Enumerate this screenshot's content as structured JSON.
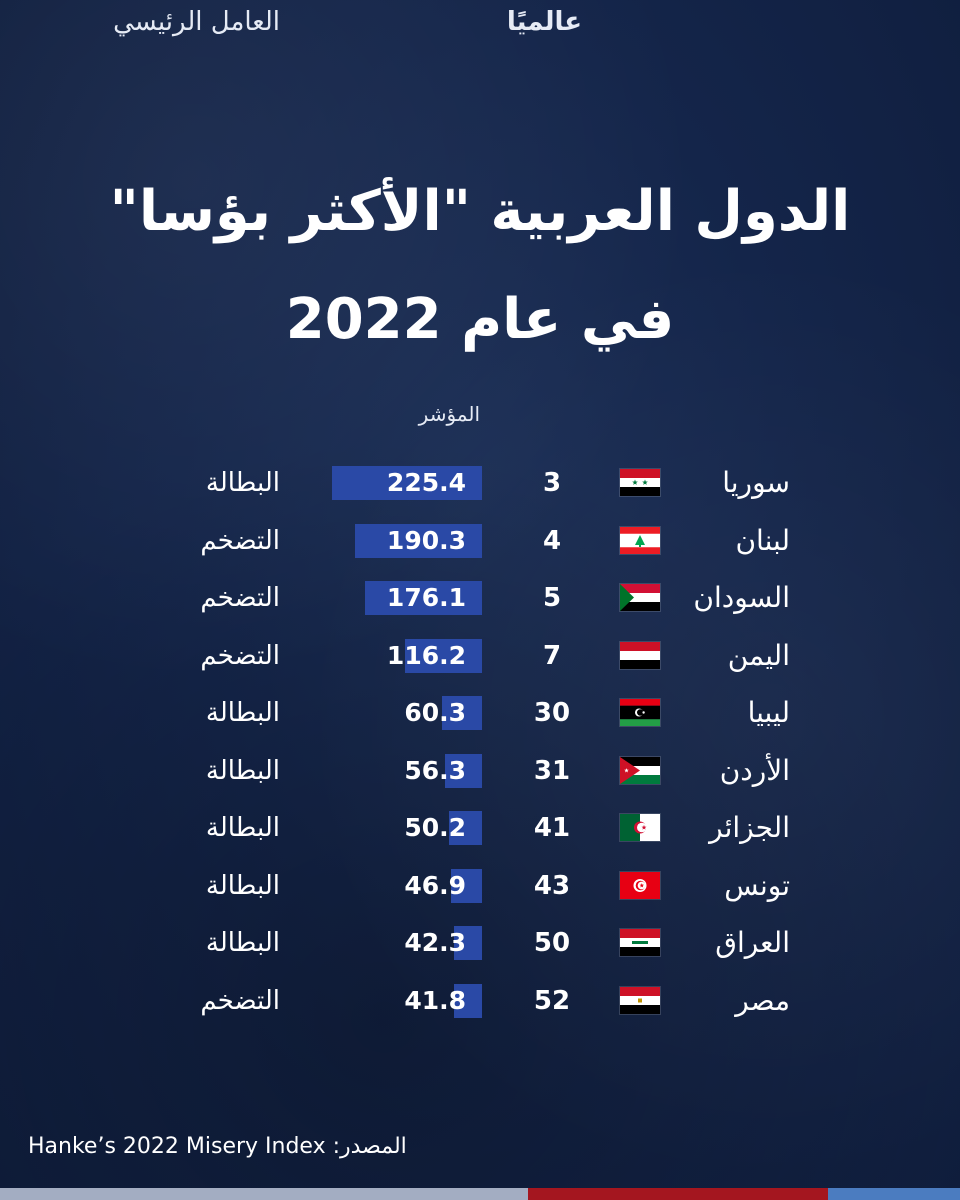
{
  "title": {
    "line1": "الدول العربية \"الأكثر بؤسا\"",
    "line2": "في عام 2022"
  },
  "headers": {
    "rank": "عالميًا",
    "index": "المؤشر",
    "factor": "العامل الرئيسي"
  },
  "source": "المصدر: Hanke’s 2022 Misery Index",
  "colors": {
    "background": "#14254a",
    "bar": "#2a49a6",
    "stripe_gray": "#a3adc2",
    "stripe_red": "#a4161f",
    "stripe_blue": "#4b7cc0"
  },
  "chart_data": {
    "type": "bar",
    "title": "الدول العربية \"الأكثر بؤسا\" في عام 2022",
    "categories": [
      "سوريا",
      "لبنان",
      "السودان",
      "اليمن",
      "ليبيا",
      "الأردن",
      "الجزائر",
      "تونس",
      "العراق",
      "مصر"
    ],
    "values": [
      225.4,
      190.3,
      176.1,
      116.2,
      60.3,
      56.3,
      50.2,
      46.9,
      42.3,
      41.8
    ],
    "display_values": [
      "225.4",
      "190.3",
      "176.1",
      "116.2",
      "60.3",
      "56.3",
      "50.2",
      "46.9",
      "42.3",
      "41.8"
    ],
    "ranks": [
      "3",
      "4",
      "5",
      "7",
      "30",
      "31",
      "41",
      "43",
      "50",
      "52"
    ],
    "factors": [
      "البطالة",
      "التضخم",
      "التضخم",
      "التضخم",
      "البطالة",
      "البطالة",
      "البطالة",
      "البطالة",
      "البطالة",
      "التضخم"
    ],
    "flags": [
      "syria-flag-icon",
      "lebanon-flag-icon",
      "sudan-flag-icon",
      "yemen-flag-icon",
      "libya-flag-icon",
      "jordan-flag-icon",
      "algeria-flag-icon",
      "tunisia-flag-icon",
      "iraq-flag-icon",
      "egypt-flag-icon"
    ],
    "xlim": [
      0,
      225.4
    ]
  }
}
